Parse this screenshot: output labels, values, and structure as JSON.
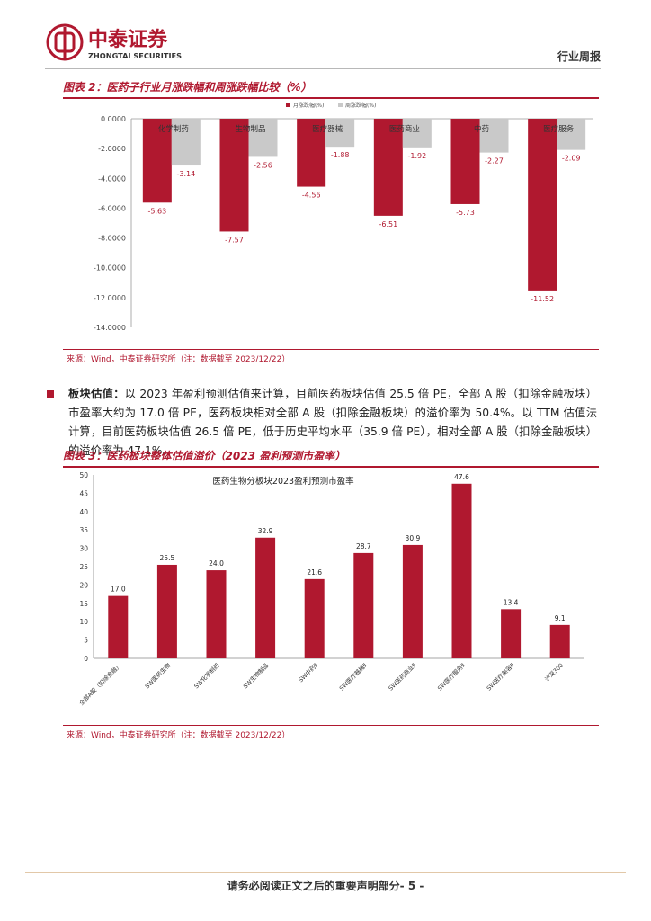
{
  "header": {
    "company_cn": "中泰证券",
    "company_en": "ZHONGTAI SECURITIES",
    "doc_type": "行业周报",
    "brand_color": "#b0182f"
  },
  "figure2": {
    "title": "图表 2：医药子行业月涨跌幅和周涨跌幅比较（%）",
    "source": "来源：Wind，中泰证券研究所（注：数据截至 2023/12/22）"
  },
  "paragraph": {
    "lead": "板块估值：",
    "text": "以 2023 年盈利预测估值来计算，目前医药板块估值 25.5 倍 PE，全部 A 股（扣除金融板块）市盈率大约为 17.0 倍 PE，医药板块相对全部 A 股（扣除金融板块）的溢价率为 50.4%。以 TTM 估值法计算，目前医药板块估值 26.5 倍 PE，低于历史平均水平（35.9 倍 PE），相对全部 A 股（扣除金融板块）的溢价率为 47.1%。"
  },
  "figure3": {
    "title": "图表 3：医药板块整体估值溢价（2023 盈利预测市盈率）",
    "source": "来源：Wind，中泰证券研究所（注：数据截至 2023/12/22）"
  },
  "footer": {
    "text": "请务必阅读正文之后的重要声明部分- 5 -"
  },
  "chart_data": [
    {
      "type": "bar",
      "categories": [
        "化学制药",
        "生物制品",
        "医疗器械",
        "医药商业",
        "中药",
        "医疗服务"
      ],
      "series": [
        {
          "name": "月涨跌幅(%)",
          "values": [
            -5.63,
            -7.57,
            -4.56,
            -6.51,
            -5.73,
            -11.52
          ],
          "color": "#b0182f"
        },
        {
          "name": "周涨跌幅(%)",
          "values": [
            -3.14,
            -2.56,
            -1.88,
            -1.92,
            -2.27,
            -2.09
          ],
          "color": "#c9c9c9"
        }
      ],
      "yticks": [
        "0.0000",
        "-2.0000",
        "-4.0000",
        "-6.0000",
        "-8.0000",
        "-10.0000",
        "-12.0000",
        "-14.0000"
      ],
      "ylim": [
        -14,
        0
      ],
      "legend": "top-center"
    },
    {
      "type": "bar",
      "title": "医药生物分板块2023盈利预测市盈率",
      "categories": [
        "全部A股（扣除金融）",
        "SW医药生物",
        "SW化学制药",
        "SW生物制品",
        "SW中药Ⅱ",
        "SW医疗器械Ⅱ",
        "SW医药商业Ⅱ",
        "SW医疗服务Ⅱ",
        "SW医疗美容Ⅱ",
        "沪深300"
      ],
      "values": [
        17.0,
        25.5,
        24.0,
        32.9,
        21.6,
        28.7,
        30.9,
        47.6,
        13.4,
        9.1
      ],
      "value_labels": [
        "17.0",
        "25.5",
        "24.0",
        "32.9",
        "21.6",
        "28.7",
        "30.9",
        "47.6",
        "13.4",
        "9.1"
      ],
      "yticks": [
        "0",
        "5",
        "10",
        "15",
        "20",
        "25",
        "30",
        "35",
        "40",
        "45",
        "50"
      ],
      "ylim": [
        0,
        50
      ],
      "color": "#b0182f"
    }
  ]
}
